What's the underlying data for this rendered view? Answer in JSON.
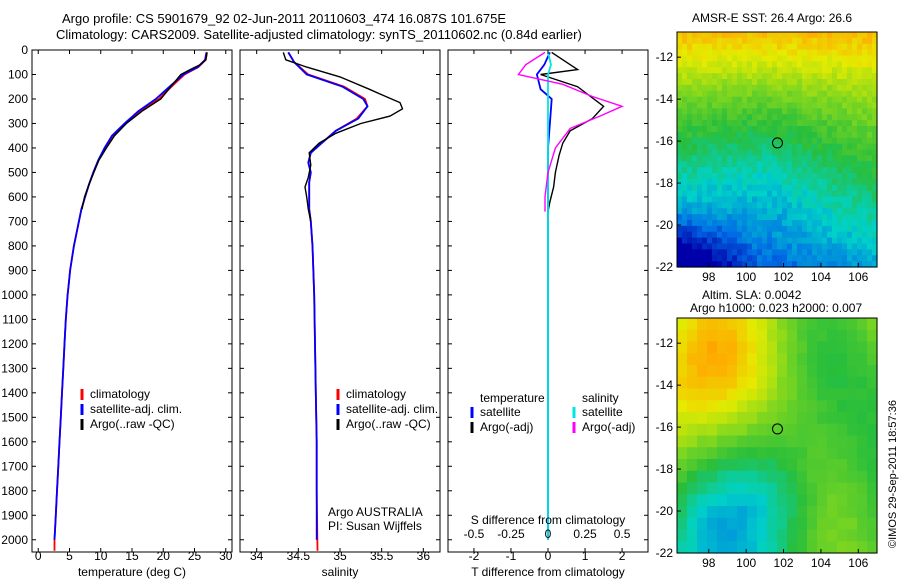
{
  "titles": {
    "line1": "Argo profile: CS 5901679_92 02-Jun-2011 20110603_474 16.087S 101.675E",
    "line2": "Climatology: CARS2009. Satellite-adjusted climatology: synTS_20110602.nc (0.84d earlier)",
    "sst_title": "AMSR-E SST: 26.4 Argo: 26.6",
    "sla_title1": "Altim. SLA: 0.0042",
    "sla_title2": "Argo h1000: 0.023 h2000: 0.007",
    "timestamp": "©IMOS 29-Sep-2011 18:57:36"
  },
  "colors": {
    "climatology": "#ff0000",
    "satellite": "#0000ff",
    "argo": "#000000",
    "salinity_satellite": "#00e5e5",
    "salinity_argo": "#ff00ff"
  },
  "chart_data": [
    {
      "type": "line",
      "name": "temperature-profile",
      "xlabel": "temperature (deg C)",
      "ylabel": "",
      "xlim": [
        -1,
        31
      ],
      "ylim": [
        2050,
        0
      ],
      "xticks": [
        0,
        5,
        10,
        15,
        20,
        25,
        30
      ],
      "yticks": [
        0,
        100,
        200,
        300,
        400,
        500,
        600,
        700,
        800,
        900,
        1000,
        1100,
        1200,
        1300,
        1400,
        1500,
        1600,
        1700,
        1800,
        1900,
        2000
      ],
      "legend": [
        "climatology",
        "satellite-adj. clim.",
        "Argo(..raw -QC)"
      ],
      "series": [
        {
          "name": "climatology",
          "color": "#ff0000",
          "points": [
            [
              27.0,
              10
            ],
            [
              26.8,
              40
            ],
            [
              25.6,
              70
            ],
            [
              23.4,
              100
            ],
            [
              21.3,
              150
            ],
            [
              19.3,
              200
            ],
            [
              16.2,
              250
            ],
            [
              13.9,
              300
            ],
            [
              11.9,
              350
            ],
            [
              10.7,
              400
            ],
            [
              9.6,
              450
            ],
            [
              8.8,
              500
            ],
            [
              8.1,
              550
            ],
            [
              7.5,
              600
            ],
            [
              6.9,
              650
            ],
            [
              6.5,
              700
            ],
            [
              6.1,
              750
            ],
            [
              5.7,
              800
            ],
            [
              5.4,
              850
            ],
            [
              5.1,
              900
            ],
            [
              4.9,
              950
            ],
            [
              4.7,
              1000
            ],
            [
              4.4,
              1100
            ],
            [
              4.2,
              1200
            ],
            [
              4.0,
              1300
            ],
            [
              3.8,
              1400
            ],
            [
              3.6,
              1500
            ],
            [
              3.4,
              1600
            ],
            [
              3.2,
              1700
            ],
            [
              3.0,
              1800
            ],
            [
              2.8,
              1900
            ],
            [
              2.6,
              2000
            ],
            [
              2.6,
              2045
            ]
          ]
        },
        {
          "name": "satellite-adj. clim.",
          "color": "#0000ff",
          "points": [
            [
              26.9,
              10
            ],
            [
              26.7,
              40
            ],
            [
              25.5,
              70
            ],
            [
              23.2,
              100
            ],
            [
              21.0,
              150
            ],
            [
              18.8,
              200
            ],
            [
              16.0,
              250
            ],
            [
              13.8,
              300
            ],
            [
              11.8,
              350
            ],
            [
              10.6,
              400
            ],
            [
              9.6,
              450
            ],
            [
              8.8,
              500
            ],
            [
              8.1,
              550
            ],
            [
              7.5,
              600
            ],
            [
              6.9,
              650
            ],
            [
              6.5,
              700
            ],
            [
              6.1,
              750
            ],
            [
              5.7,
              800
            ],
            [
              5.4,
              850
            ],
            [
              5.1,
              900
            ],
            [
              4.9,
              950
            ],
            [
              4.7,
              1000
            ],
            [
              4.4,
              1100
            ],
            [
              4.2,
              1200
            ],
            [
              4.0,
              1300
            ],
            [
              3.8,
              1400
            ],
            [
              3.6,
              1500
            ],
            [
              3.4,
              1600
            ],
            [
              3.2,
              1700
            ],
            [
              3.0,
              1800
            ],
            [
              2.8,
              1900
            ],
            [
              2.6,
              2000
            ]
          ]
        },
        {
          "name": "Argo",
          "color": "#000000",
          "points": [
            [
              27.0,
              10
            ],
            [
              26.8,
              40
            ],
            [
              25.9,
              60
            ],
            [
              24.3,
              80
            ],
            [
              22.8,
              100
            ],
            [
              21.2,
              150
            ],
            [
              19.6,
              200
            ],
            [
              16.6,
              250
            ],
            [
              14.1,
              300
            ],
            [
              12.2,
              350
            ],
            [
              10.9,
              400
            ],
            [
              9.7,
              450
            ],
            [
              8.9,
              500
            ],
            [
              8.1,
              550
            ],
            [
              7.4,
              600
            ],
            [
              7.0,
              650
            ]
          ]
        }
      ]
    },
    {
      "type": "line",
      "name": "salinity-profile",
      "xlabel": "salinity",
      "xlim": [
        33.8,
        36.2
      ],
      "ylim": [
        2050,
        0
      ],
      "xticks": [
        34,
        34.5,
        35,
        35.5,
        36
      ],
      "legend": [
        "climatology",
        "satellite-adj. clim.",
        "Argo(..raw -QC)"
      ],
      "annotations": [
        "Argo AUSTRALIA",
        "PI: Susan Wijffels"
      ],
      "series": [
        {
          "name": "climatology",
          "color": "#ff0000",
          "points": [
            [
              34.38,
              10
            ],
            [
              34.45,
              50
            ],
            [
              34.62,
              100
            ],
            [
              35.05,
              150
            ],
            [
              35.3,
              200
            ],
            [
              35.33,
              230
            ],
            [
              35.2,
              280
            ],
            [
              34.95,
              330
            ],
            [
              34.78,
              380
            ],
            [
              34.65,
              420
            ],
            [
              34.62,
              460
            ],
            [
              34.65,
              500
            ],
            [
              34.63,
              540
            ],
            [
              34.63,
              600
            ],
            [
              34.63,
              650
            ],
            [
              34.65,
              700
            ],
            [
              34.67,
              800
            ],
            [
              34.69,
              1000
            ],
            [
              34.7,
              1200
            ],
            [
              34.71,
              1400
            ],
            [
              34.72,
              1600
            ],
            [
              34.72,
              1800
            ],
            [
              34.73,
              2045
            ]
          ]
        },
        {
          "name": "satellite-adj. clim.",
          "color": "#0000ff",
          "points": [
            [
              34.38,
              10
            ],
            [
              34.45,
              50
            ],
            [
              34.6,
              100
            ],
            [
              35.03,
              150
            ],
            [
              35.28,
              200
            ],
            [
              35.33,
              230
            ],
            [
              35.22,
              280
            ],
            [
              34.95,
              330
            ],
            [
              34.78,
              380
            ],
            [
              34.65,
              420
            ],
            [
              34.62,
              460
            ],
            [
              34.65,
              500
            ],
            [
              34.63,
              540
            ],
            [
              34.63,
              600
            ],
            [
              34.63,
              650
            ],
            [
              34.65,
              700
            ],
            [
              34.67,
              800
            ],
            [
              34.69,
              1000
            ],
            [
              34.7,
              1200
            ],
            [
              34.71,
              1400
            ],
            [
              34.72,
              1600
            ],
            [
              34.72,
              1800
            ],
            [
              34.72,
              2000
            ]
          ]
        },
        {
          "name": "Argo",
          "color": "#000000",
          "points": [
            [
              34.32,
              10
            ],
            [
              34.35,
              40
            ],
            [
              34.6,
              70
            ],
            [
              35.0,
              110
            ],
            [
              35.35,
              160
            ],
            [
              35.55,
              190
            ],
            [
              35.72,
              215
            ],
            [
              35.75,
              240
            ],
            [
              35.6,
              270
            ],
            [
              35.25,
              300
            ],
            [
              34.95,
              340
            ],
            [
              34.75,
              380
            ],
            [
              34.63,
              420
            ],
            [
              34.65,
              470
            ],
            [
              34.62,
              520
            ],
            [
              34.58,
              560
            ],
            [
              34.6,
              600
            ],
            [
              34.62,
              650
            ],
            [
              34.65,
              700
            ]
          ]
        }
      ]
    },
    {
      "type": "line",
      "name": "difference-profile",
      "xlabel": "T difference from climatology",
      "xlabel_top": "S difference from climatology",
      "xlim": [
        -2.7,
        2.7
      ],
      "ylim": [
        2050,
        0
      ],
      "xticks": [
        -2,
        -1,
        0,
        1,
        2
      ],
      "s_ticks": [
        "-0.5",
        "-0.25",
        "0",
        "0.25",
        "0.5"
      ],
      "legend_temperature": [
        "temperature",
        "satellite",
        "Argo(-adj)"
      ],
      "legend_salinity": [
        "salinity",
        "satellite",
        "Argo(-adj)"
      ],
      "series": [
        {
          "name": "T satellite",
          "color": "#0000ff",
          "points": [
            [
              0.05,
              10
            ],
            [
              -0.1,
              60
            ],
            [
              -0.3,
              100
            ],
            [
              -0.2,
              160
            ],
            [
              0.1,
              200
            ],
            [
              0.05,
              300
            ],
            [
              0.0,
              400
            ],
            [
              0.0,
              600
            ],
            [
              0.0,
              1000
            ],
            [
              0.0,
              1500
            ],
            [
              0.0,
              2000
            ]
          ]
        },
        {
          "name": "T Argo(-adj)",
          "color": "#000000",
          "points": [
            [
              0.1,
              10
            ],
            [
              0.6,
              60
            ],
            [
              0.8,
              80
            ],
            [
              -0.2,
              100
            ],
            [
              0.8,
              150
            ],
            [
              1.5,
              230
            ],
            [
              1.2,
              280
            ],
            [
              0.6,
              330
            ],
            [
              0.4,
              380
            ],
            [
              0.3,
              430
            ],
            [
              0.2,
              500
            ],
            [
              0.15,
              560
            ],
            [
              0.05,
              620
            ],
            [
              0.0,
              660
            ]
          ]
        },
        {
          "name": "S satellite",
          "color": "#00e5e5",
          "points": [
            [
              0.0,
              10
            ],
            [
              0.02,
              60
            ],
            [
              0.0,
              100
            ],
            [
              0.0,
              200
            ],
            [
              0.0,
              400
            ],
            [
              0.0,
              700
            ],
            [
              0.0,
              1000
            ],
            [
              0.0,
              1500
            ],
            [
              0.0,
              2000
            ]
          ]
        },
        {
          "name": "S Argo(-adj)",
          "color": "#ff00ff",
          "points": [
            [
              -0.02,
              10
            ],
            [
              -0.15,
              60
            ],
            [
              -0.2,
              100
            ],
            [
              0.1,
              140
            ],
            [
              0.3,
              190
            ],
            [
              0.5,
              230
            ],
            [
              0.35,
              270
            ],
            [
              0.15,
              320
            ],
            [
              0.05,
              400
            ],
            [
              0.0,
              500
            ],
            [
              -0.02,
              600
            ],
            [
              -0.02,
              660
            ]
          ]
        }
      ]
    },
    {
      "type": "heatmap",
      "name": "sst-map",
      "title": "AMSR-E SST: 26.4 Argo: 26.6",
      "xlim": [
        96.3,
        107.0
      ],
      "ylim": [
        -22,
        -10.8
      ],
      "xticks": [
        98,
        100,
        102,
        104,
        106
      ],
      "yticks": [
        -12,
        -14,
        -16,
        -18,
        -20,
        -22
      ],
      "marker": [
        101.675,
        -16.087
      ]
    },
    {
      "type": "heatmap",
      "name": "sla-map",
      "title": "Altim. SLA: 0.0042",
      "xlim": [
        96.3,
        107.0
      ],
      "ylim": [
        -22,
        -10.8
      ],
      "xticks": [
        98,
        100,
        102,
        104,
        106
      ],
      "yticks": [
        -12,
        -14,
        -16,
        -18,
        -20,
        -22
      ],
      "marker": [
        101.675,
        -16.087
      ]
    }
  ]
}
